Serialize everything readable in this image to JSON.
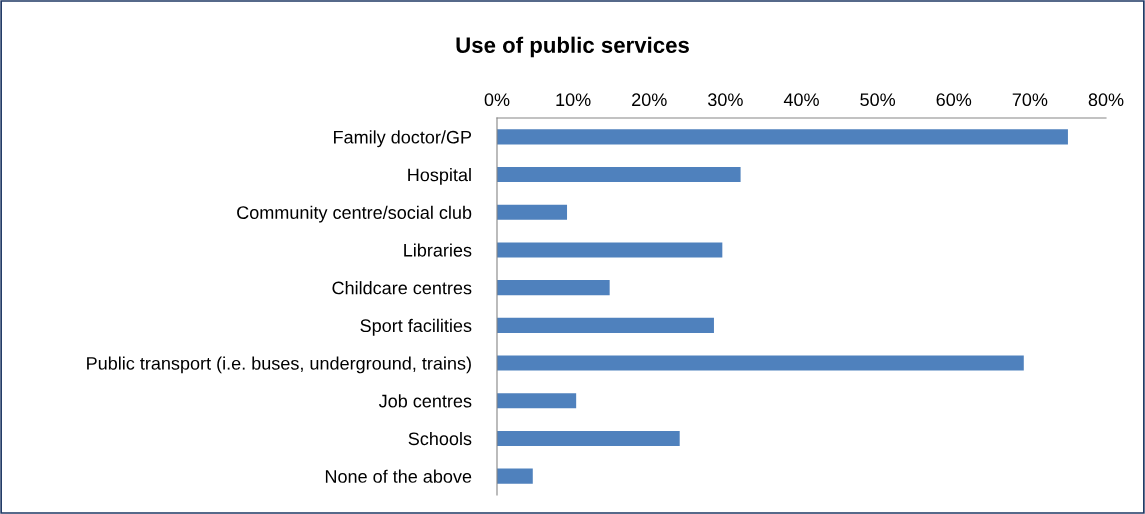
{
  "chart_data": {
    "type": "bar",
    "orientation": "horizontal",
    "title": "Use of public services",
    "categories": [
      "Family doctor/GP",
      "Hospital",
      "Community centre/social club",
      "Libraries",
      "Childcare centres",
      "Sport facilities",
      "Public transport (i.e. buses, underground, trains)",
      "Job centres",
      "Schools",
      "None of the above"
    ],
    "values": [
      75,
      32,
      9.2,
      29.6,
      14.8,
      28.5,
      69.2,
      10.4,
      24,
      4.7
    ],
    "color": "#4f81bd",
    "xlim": [
      0,
      80
    ],
    "xticks": [
      {
        "value": 0,
        "label": "0%"
      },
      {
        "value": 10,
        "label": "10%"
      },
      {
        "value": 20,
        "label": "20%"
      },
      {
        "value": 30,
        "label": "30%"
      },
      {
        "value": 40,
        "label": "40%"
      },
      {
        "value": 50,
        "label": "50%"
      },
      {
        "value": 60,
        "label": "60%"
      },
      {
        "value": 70,
        "label": "70%"
      },
      {
        "value": 80,
        "label": "80%"
      }
    ],
    "grid": false,
    "legend": false
  }
}
